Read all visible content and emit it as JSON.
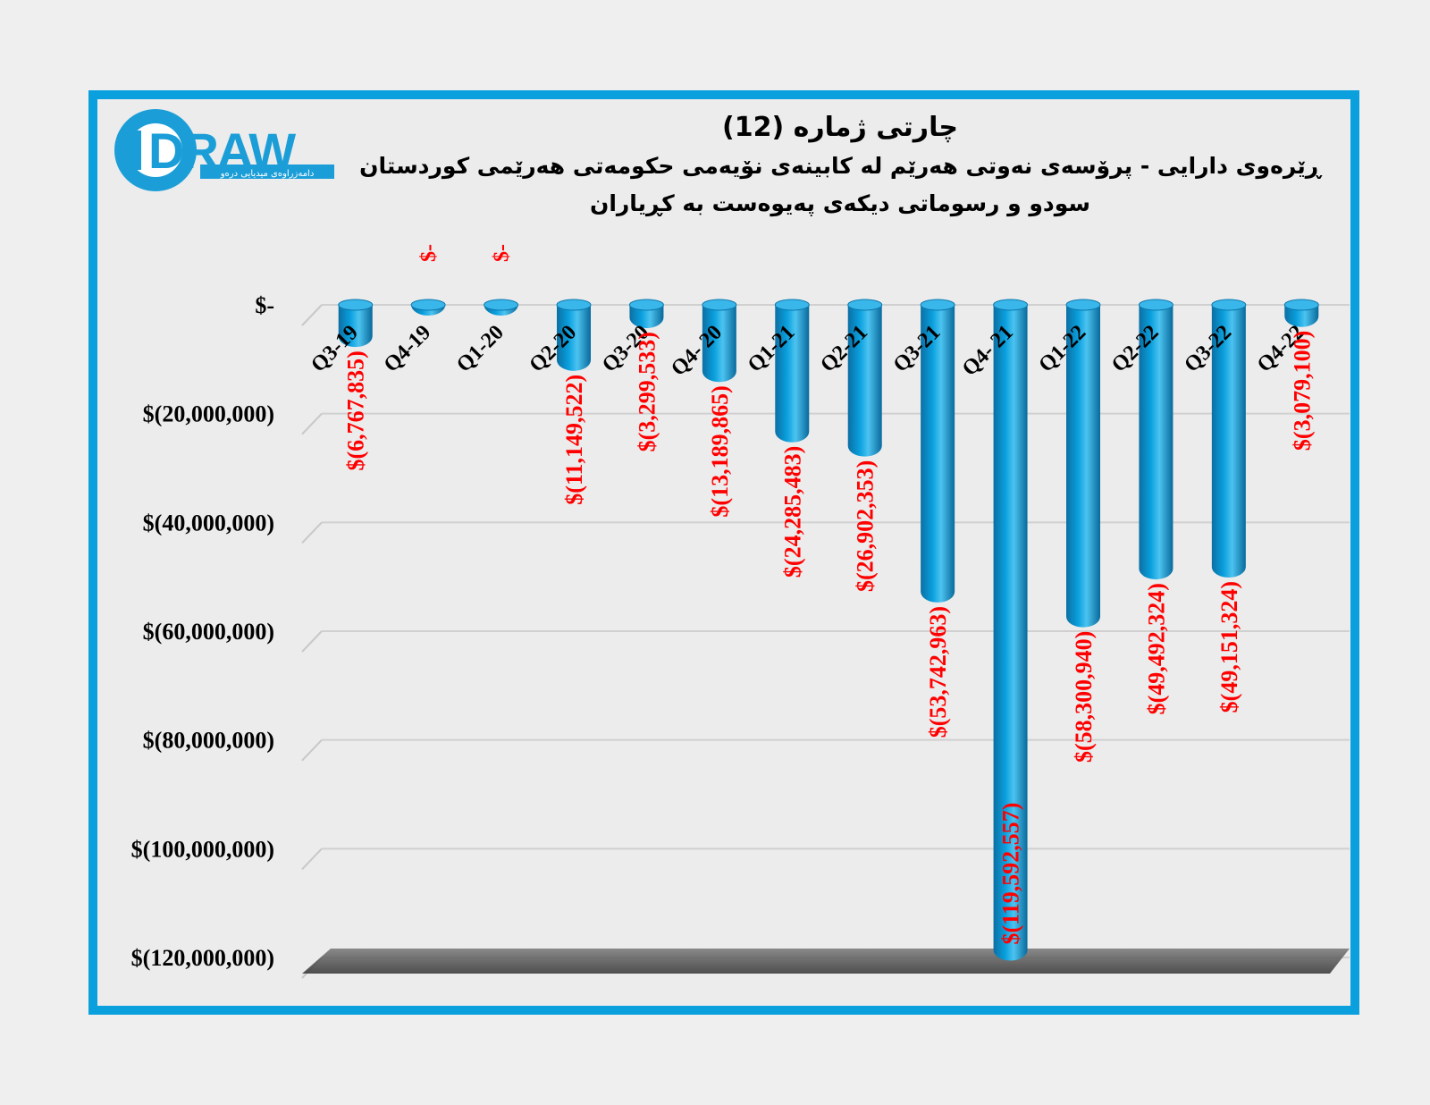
{
  "branding": {
    "logo_text": "DRAW",
    "logo_tagline": "دامەزراوەی میدیایی درەو"
  },
  "chart_data": {
    "type": "bar",
    "title": "چارتی ژمارە (12)",
    "subtitle": "ڕێرەوی دارایی - پرۆسەی نەوتی هەرێم لە کابینەی نۆیەمی حکومەتی هەرێمی کوردستان",
    "subtitle2": "سودو و رسوماتی دیکەی پەیوەست بە کڕیاران",
    "categories": [
      "Q3-19",
      "Q4-19",
      "Q1-20",
      "Q2-20",
      "Q3-20",
      "Q4- 20",
      "Q1-21",
      "Q2-21",
      "Q3-21",
      "Q4- 21",
      "Q1-22",
      "Q2-22",
      "Q3-22",
      "Q4-22"
    ],
    "values": [
      -6767835,
      0,
      0,
      -11149522,
      -3299533,
      -13189865,
      -24285483,
      -26902353,
      -53742963,
      -119592557,
      -58300940,
      -49492324,
      -49151324,
      -3079100
    ],
    "data_labels": [
      "$(6,767,835)",
      "$-",
      "$-",
      "$(11,149,522)",
      "$(3,299,533)",
      "$(13,189,865)",
      "$(24,285,483)",
      "$(26,902,353)",
      "$(53,742,963)",
      "$(119,592,557)",
      "$(58,300,940)",
      "$(49,492,324)",
      "$(49,151,324)",
      "$(3,079,100)"
    ],
    "y_ticks": [
      0,
      -20000000,
      -40000000,
      -60000000,
      -80000000,
      -100000000,
      -120000000
    ],
    "y_tick_labels": [
      "$-",
      "$(20,000,000)",
      "$(40,000,000)",
      "$(60,000,000)",
      "$(80,000,000)",
      "$(100,000,000)",
      "$(120,000,000)"
    ],
    "ylim": [
      -120000000,
      0
    ],
    "grid": true,
    "colors": {
      "bar": "#0aa0de",
      "label": "#ff0000",
      "frame": "#0aa0de"
    }
  }
}
